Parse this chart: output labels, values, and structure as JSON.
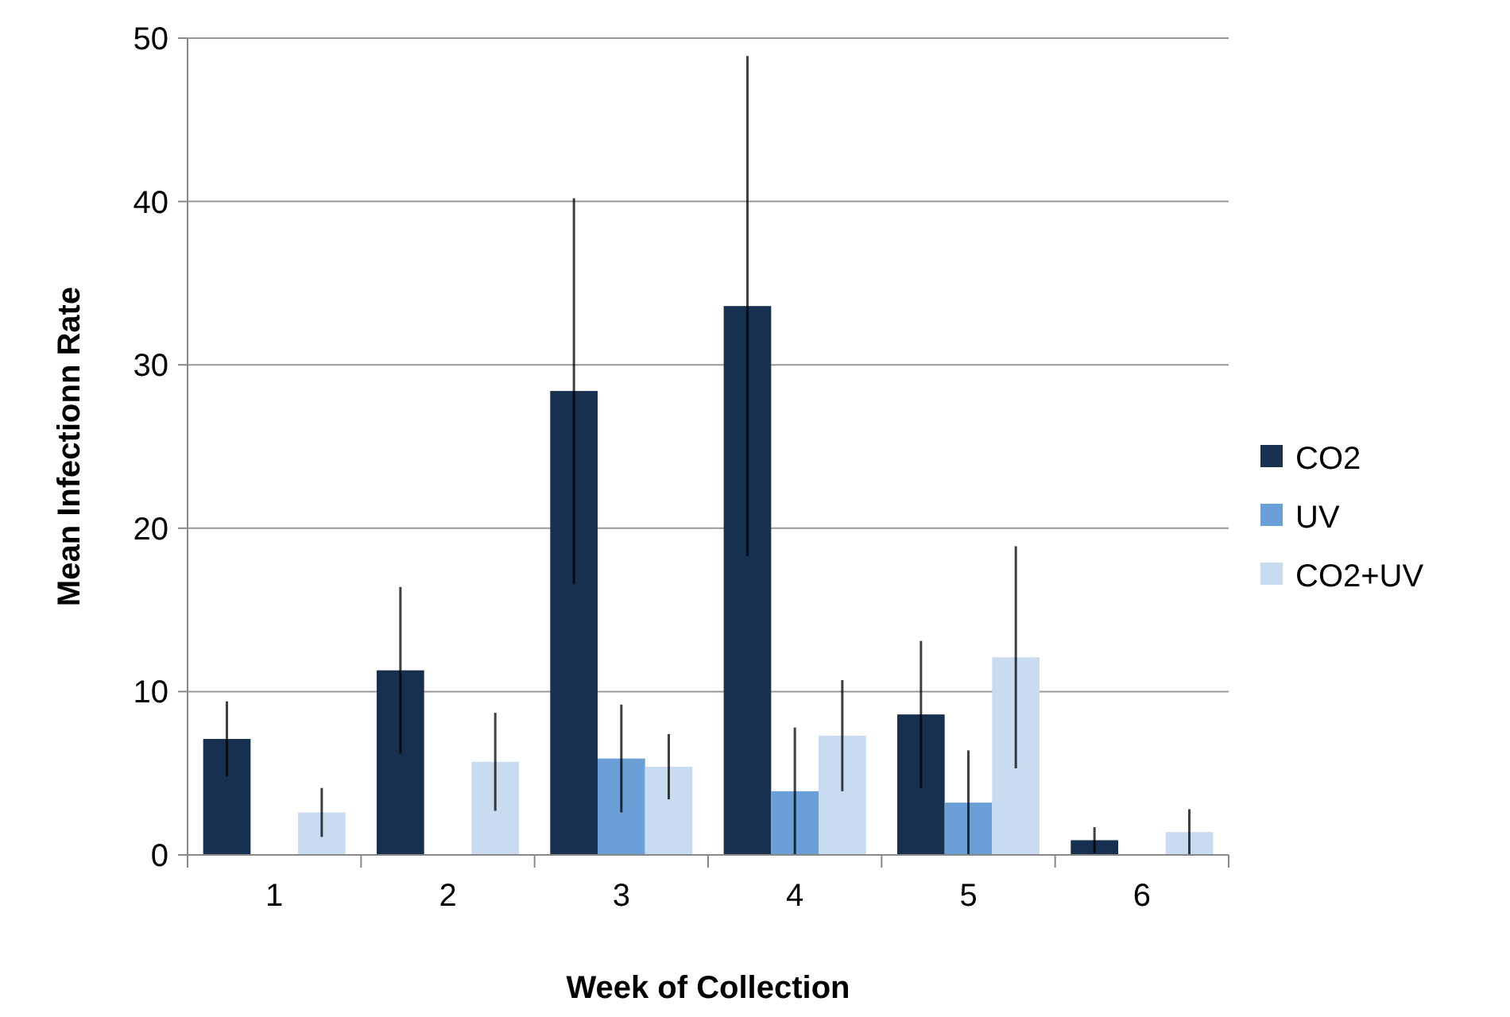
{
  "chart_data": {
    "type": "bar",
    "xlabel": "Week of Collection",
    "ylabel": "Mean Infectionn Rate",
    "categories": [
      "1",
      "2",
      "3",
      "4",
      "5",
      "6"
    ],
    "series": [
      {
        "name": "CO2",
        "color": "#17304f",
        "values": [
          7.1,
          11.3,
          28.4,
          33.6,
          8.6,
          0.9
        ],
        "errors": [
          2.3,
          5.1,
          11.8,
          15.3,
          4.5,
          0.8
        ]
      },
      {
        "name": "UV",
        "color": "#6a9fd8",
        "values": [
          0,
          0,
          5.9,
          3.9,
          3.2,
          0
        ],
        "errors": [
          null,
          null,
          3.3,
          3.9,
          3.2,
          null
        ]
      },
      {
        "name": "CO2+UV",
        "color": "#c9dbf0",
        "values": [
          2.6,
          5.7,
          5.4,
          7.3,
          12.1,
          1.4
        ],
        "errors": [
          1.5,
          3.0,
          2.0,
          3.4,
          6.8,
          1.4
        ]
      }
    ],
    "ylim": [
      0,
      50
    ],
    "yticks": [
      0,
      10,
      20,
      30,
      40,
      50
    ],
    "grid": "y",
    "legend": "right"
  }
}
